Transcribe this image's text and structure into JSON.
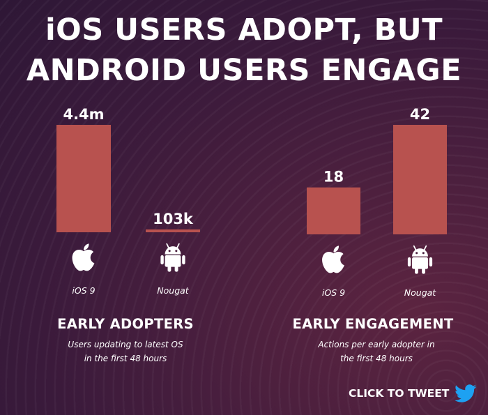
{
  "title": {
    "line1": "iOS USERS ADOPT, BUT",
    "line2": "ANDROID USERS ENGAGE"
  },
  "bar_color": "#b8524f",
  "chart_data": [
    {
      "type": "bar",
      "title": "EARLY ADOPTERS",
      "subtitle": [
        "Users updating to latest OS",
        "in the first 48 hours"
      ],
      "categories": [
        "iOS 9",
        "Nougat"
      ],
      "values": [
        4400000,
        103000
      ],
      "data_labels": [
        "4.4m",
        "103k"
      ],
      "icons": [
        "apple-icon",
        "android-icon"
      ],
      "xlabel": "",
      "ylabel": "",
      "ylim": [
        0,
        4400000
      ],
      "grid": false
    },
    {
      "type": "bar",
      "title": "EARLY ENGAGEMENT",
      "subtitle": [
        "Actions per early adopter in",
        "the first 48 hours"
      ],
      "categories": [
        "iOS 9",
        "Nougat"
      ],
      "values": [
        18,
        42
      ],
      "data_labels": [
        "18",
        "42"
      ],
      "icons": [
        "apple-icon",
        "android-icon"
      ],
      "xlabel": "",
      "ylabel": "",
      "ylim": [
        0,
        42
      ],
      "grid": false
    }
  ],
  "cta": {
    "label": "CLICK TO TWEET",
    "icon": "twitter-bird-icon",
    "color": "#1da1f2"
  }
}
